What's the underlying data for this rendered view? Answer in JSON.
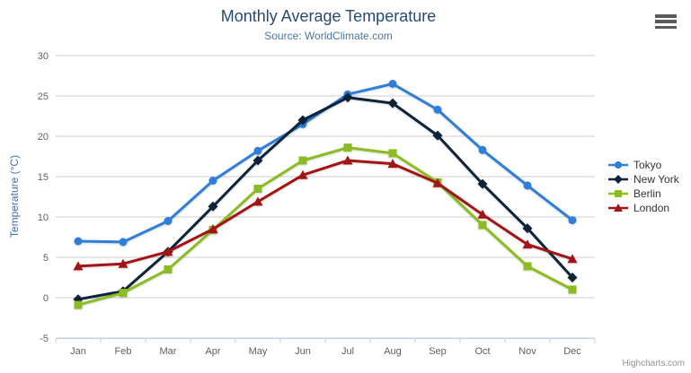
{
  "chart_data": {
    "type": "line",
    "title": "Monthly Average Temperature",
    "subtitle": "Source: WorldClimate.com",
    "categories": [
      "Jan",
      "Feb",
      "Mar",
      "Apr",
      "May",
      "Jun",
      "Jul",
      "Aug",
      "Sep",
      "Oct",
      "Nov",
      "Dec"
    ],
    "xlabel": "",
    "ylabel": "Temperature (°C)",
    "ylim": [
      -5,
      30
    ],
    "ytick_interval": 5,
    "grid": true,
    "legend_position": "right",
    "series": [
      {
        "name": "Tokyo",
        "marker": "circle",
        "color": "#2f7ed8",
        "values": [
          7.0,
          6.9,
          9.5,
          14.5,
          18.2,
          21.5,
          25.2,
          26.5,
          23.3,
          18.3,
          13.9,
          9.6
        ]
      },
      {
        "name": "New York",
        "marker": "diamond",
        "color": "#0d233a",
        "values": [
          -0.2,
          0.8,
          5.7,
          11.3,
          17.0,
          22.0,
          24.8,
          24.1,
          20.1,
          14.1,
          8.6,
          2.5
        ]
      },
      {
        "name": "Berlin",
        "marker": "square",
        "color": "#8bbc21",
        "values": [
          -0.9,
          0.6,
          3.5,
          8.4,
          13.5,
          17.0,
          18.6,
          17.9,
          14.3,
          9.0,
          3.9,
          1.0
        ]
      },
      {
        "name": "London",
        "marker": "triangle",
        "color": "#a31414",
        "values": [
          3.9,
          4.2,
          5.7,
          8.5,
          11.9,
          15.2,
          17.0,
          16.6,
          14.2,
          10.3,
          6.6,
          4.8
        ]
      }
    ]
  },
  "credits": "Highcharts.com",
  "icons": {
    "context_menu": "hamburger-icon"
  },
  "colors": {
    "title": "#274b6d",
    "subtitle": "#4d759e",
    "axis_title": "#4572a7",
    "tick_label": "#606060",
    "gridline": "#cccccc",
    "axis_line": "#c0d0e0",
    "legend_text": "#333333",
    "credits_text": "#909090",
    "burger_icon": "#5a5a5a"
  }
}
